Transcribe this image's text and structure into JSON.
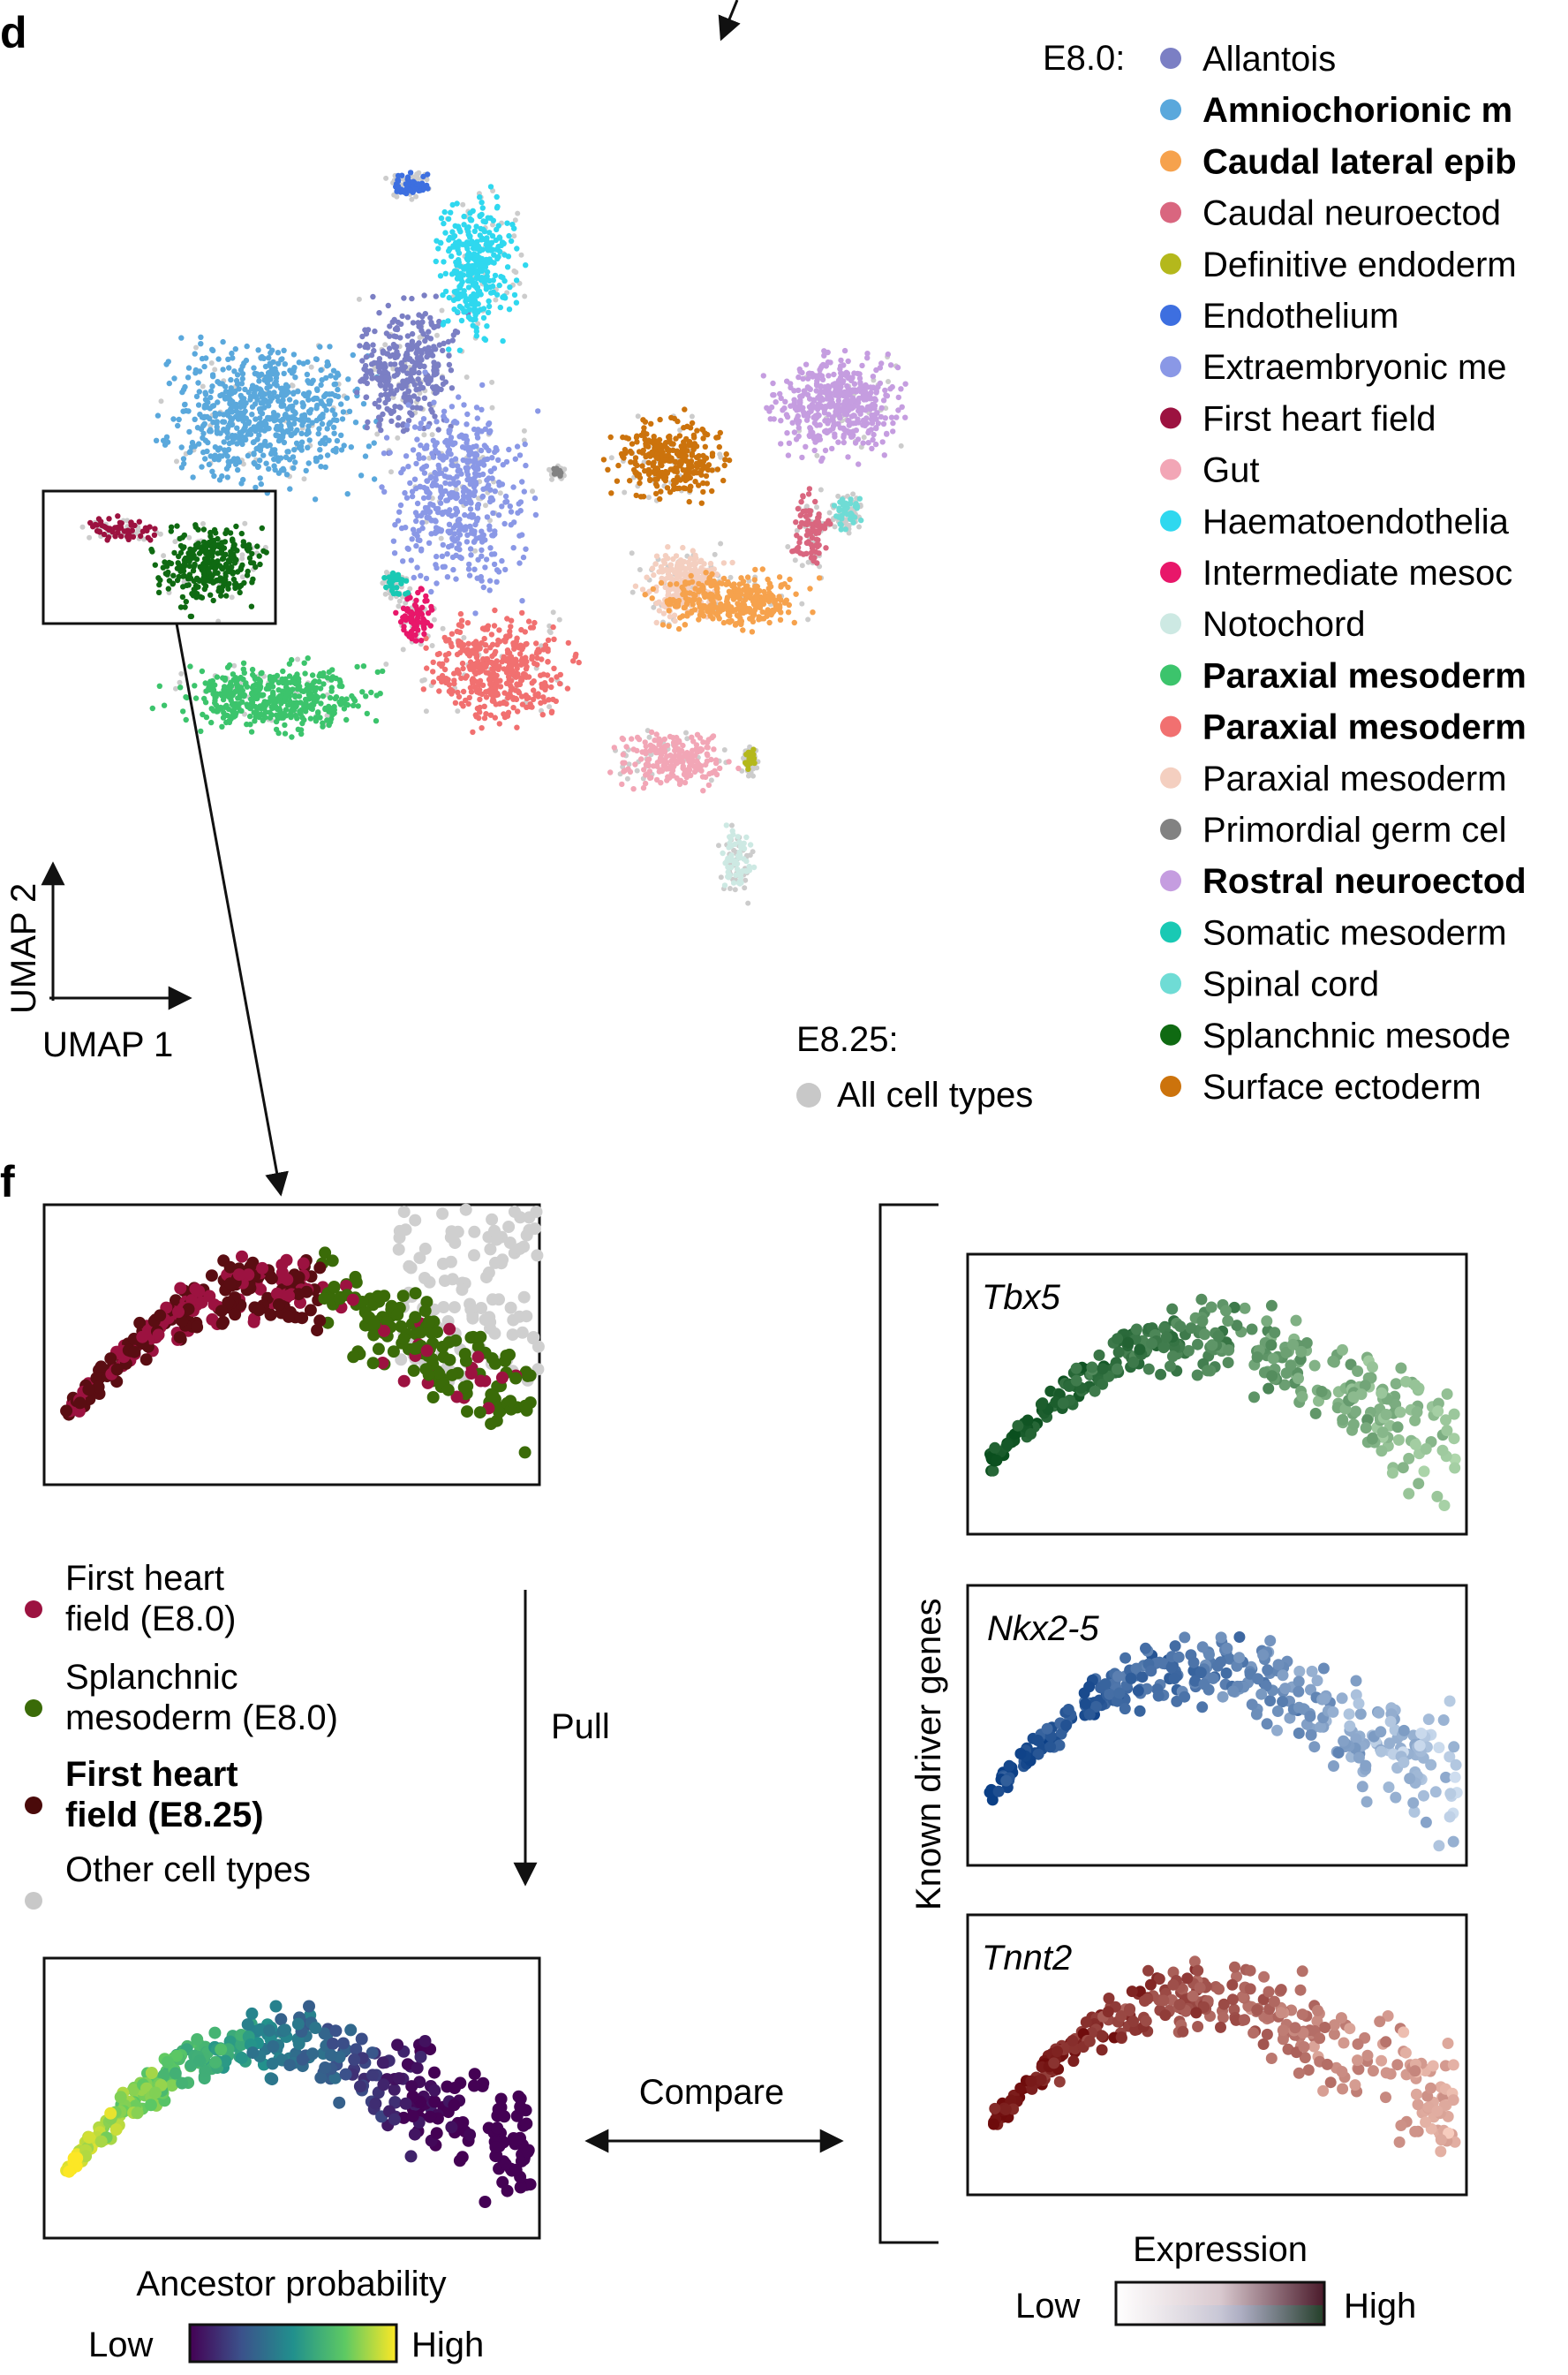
{
  "panel_d": {
    "label": "d",
    "legend_stage_e80": "E8.0:",
    "legend_items": [
      {
        "label": "Allantois",
        "color": "#7b7fc4",
        "bold": false
      },
      {
        "label": "Amniochorionic m",
        "color": "#5aa8dc",
        "bold": true
      },
      {
        "label": "Caudal lateral epib",
        "color": "#f6a24d",
        "bold": true
      },
      {
        "label": "Caudal neuroectod",
        "color": "#d9667f",
        "bold": false
      },
      {
        "label": "Definitive endoderm",
        "color": "#b4b81c",
        "bold": false
      },
      {
        "label": "Endothelium",
        "color": "#3d6fe0",
        "bold": false
      },
      {
        "label": "Extraembryonic me",
        "color": "#8a98e6",
        "bold": false
      },
      {
        "label": "First heart field",
        "color": "#9c1240",
        "bold": false
      },
      {
        "label": "Gut",
        "color": "#f2a6b6",
        "bold": false
      },
      {
        "label": "Haematoendothelia",
        "color": "#2fd8ef",
        "bold": false
      },
      {
        "label": "Intermediate mesoc",
        "color": "#e8176a",
        "bold": false
      },
      {
        "label": "Notochord",
        "color": "#cde9e3",
        "bold": false
      },
      {
        "label": "Paraxial mesoderm",
        "color": "#3cc46c",
        "bold": true
      },
      {
        "label": "Paraxial mesoderm",
        "color": "#f17070",
        "bold": true
      },
      {
        "label": "Paraxial mesoderm",
        "color": "#f4cfc0",
        "bold": false
      },
      {
        "label": "Primordial germ cel",
        "color": "#828282",
        "bold": false
      },
      {
        "label": "Rostral neuroectod",
        "color": "#c59de0",
        "bold": true
      },
      {
        "label": "Somatic mesoderm",
        "color": "#19c9b4",
        "bold": false
      },
      {
        "label": "Spinal cord",
        "color": "#6fdcd5",
        "bold": false
      },
      {
        "label": "Splanchnic mesode",
        "color": "#0f6a12",
        "bold": false
      },
      {
        "label": "Surface ectoderm",
        "color": "#cc730c",
        "bold": false
      }
    ],
    "legend_stage_e825": "E8.25:",
    "legend_all": {
      "label": "All cell types",
      "color": "#c8c8c8"
    },
    "axis_y": "UMAP 2",
    "axis_x": "UMAP 1"
  },
  "panel_f": {
    "label": "f",
    "legend_items": [
      {
        "label_lines": [
          "First heart",
          "field (E8.0)"
        ],
        "color": "#9c1240",
        "bold": false
      },
      {
        "label_lines": [
          "Splanchnic",
          "mesoderm (E8.0)"
        ],
        "color": "#3a6b08",
        "bold": false
      },
      {
        "label_lines": [
          "First heart",
          "field (E8.25)"
        ],
        "color": "#4a0a0a",
        "bold": true
      },
      {
        "label_lines": [
          "Other cell types"
        ],
        "color": "#c8c8c8",
        "bold": false
      }
    ],
    "pull_label": "Pull",
    "compare_label": "Compare",
    "known_driver_genes": "Known driver genes",
    "genes": [
      {
        "name": "Tbx5",
        "dark": "#0a4f1e",
        "light": "#c2e7bd"
      },
      {
        "name": "Nkx2-5",
        "dark": "#0b3f86",
        "light": "#dbe8f6"
      },
      {
        "name": "Tnnt2",
        "dark": "#6e0b0b",
        "light": "#fbd2c3"
      }
    ],
    "ancestor_label": "Ancestor probability",
    "ancestor_low": "Low",
    "ancestor_high": "High",
    "expression_label": "Expression",
    "expression_low": "Low",
    "expression_high": "High"
  }
}
